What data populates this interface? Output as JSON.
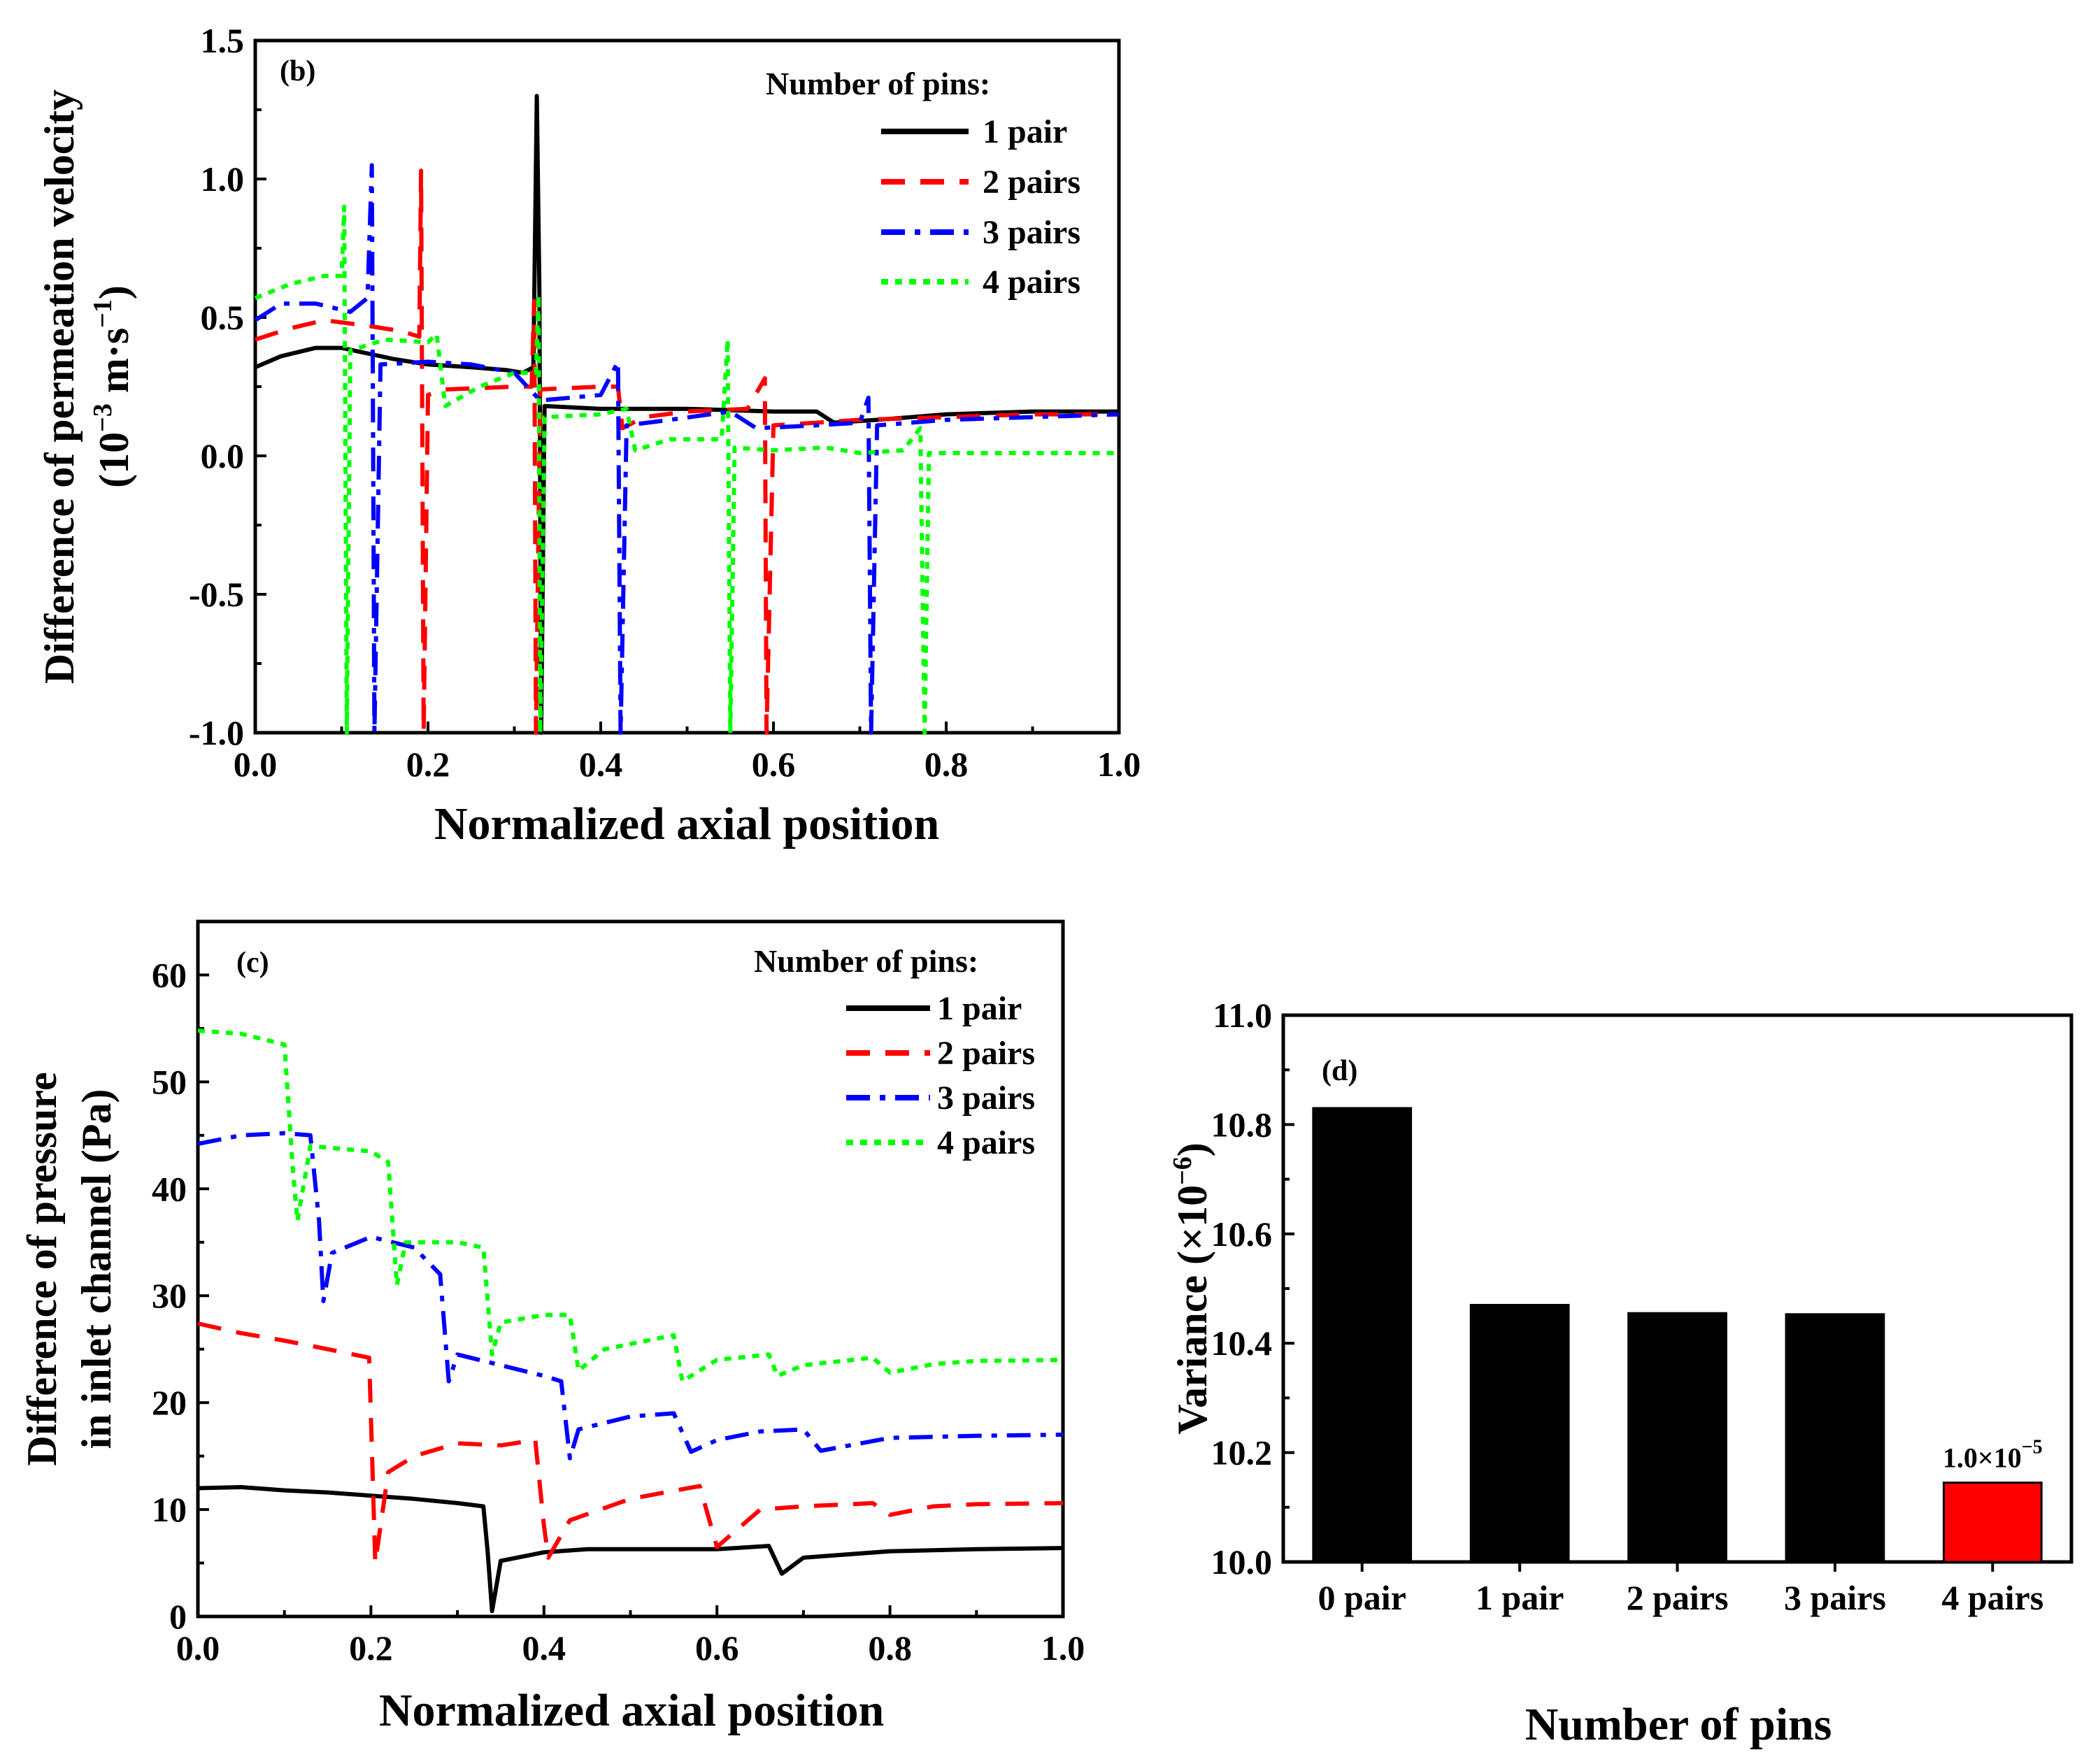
{
  "chart_data": [
    {
      "id": "b",
      "type": "line",
      "panel_label": "(b)",
      "xlabel": "Normalized axial position",
      "ylabel_line1": "Difference of permeation velocity",
      "ylabel_line2_prefix": "(10",
      "ylabel_line2_exp1": "−3",
      "ylabel_line2_mid": " m·s",
      "ylabel_line2_exp2": "−1",
      "ylabel_line2_suffix": ")",
      "xlim": [
        0,
        1
      ],
      "ylim": [
        -1,
        1.5
      ],
      "xticks": [
        "0.0",
        "0.2",
        "0.4",
        "0.6",
        "0.8",
        "1.0"
      ],
      "yticks": [
        "-1.0",
        "-0.5",
        "0.0",
        "0.5",
        "1.0",
        "1.5"
      ],
      "legend_title": "Number of pins:",
      "legend_position": "top-right",
      "series": [
        {
          "name": "1 pair",
          "color": "#000000",
          "style": "solid",
          "points": [
            [
              0.0,
              0.32
            ],
            [
              0.03,
              0.36
            ],
            [
              0.07,
              0.39
            ],
            [
              0.1,
              0.39
            ],
            [
              0.13,
              0.37
            ],
            [
              0.16,
              0.35
            ],
            [
              0.2,
              0.33
            ],
            [
              0.25,
              0.32
            ],
            [
              0.29,
              0.31
            ],
            [
              0.31,
              0.3
            ],
            [
              0.322,
              0.32
            ],
            [
              0.326,
              1.3
            ],
            [
              0.329,
              0.6
            ],
            [
              0.331,
              -1.0
            ],
            [
              0.335,
              0.18
            ],
            [
              0.4,
              0.17
            ],
            [
              0.5,
              0.17
            ],
            [
              0.6,
              0.16
            ],
            [
              0.65,
              0.16
            ],
            [
              0.67,
              0.12
            ],
            [
              0.72,
              0.13
            ],
            [
              0.8,
              0.15
            ],
            [
              0.9,
              0.16
            ],
            [
              1.0,
              0.16
            ]
          ]
        },
        {
          "name": "2 pairs",
          "color": "#ff0000",
          "style": "dash",
          "points": [
            [
              0.0,
              0.42
            ],
            [
              0.04,
              0.46
            ],
            [
              0.08,
              0.49
            ],
            [
              0.13,
              0.47
            ],
            [
              0.17,
              0.45
            ],
            [
              0.19,
              0.43
            ],
            [
              0.192,
              1.03
            ],
            [
              0.195,
              -1.0
            ],
            [
              0.2,
              0.22
            ],
            [
              0.22,
              0.24
            ],
            [
              0.3,
              0.25
            ],
            [
              0.32,
              0.25
            ],
            [
              0.323,
              0.56
            ],
            [
              0.325,
              -1.0
            ],
            [
              0.33,
              0.24
            ],
            [
              0.4,
              0.25
            ],
            [
              0.42,
              0.25
            ],
            [
              0.425,
              0.1
            ],
            [
              0.45,
              0.14
            ],
            [
              0.5,
              0.16
            ],
            [
              0.57,
              0.17
            ],
            [
              0.59,
              0.28
            ],
            [
              0.592,
              -1.0
            ],
            [
              0.6,
              0.11
            ],
            [
              0.65,
              0.12
            ],
            [
              0.7,
              0.13
            ],
            [
              0.8,
              0.14
            ],
            [
              0.9,
              0.15
            ],
            [
              1.0,
              0.15
            ]
          ]
        },
        {
          "name": "3 pairs",
          "color": "#0000ff",
          "style": "dashdot",
          "points": [
            [
              0.0,
              0.49
            ],
            [
              0.03,
              0.55
            ],
            [
              0.07,
              0.55
            ],
            [
              0.11,
              0.52
            ],
            [
              0.13,
              0.57
            ],
            [
              0.135,
              1.05
            ],
            [
              0.138,
              -1.0
            ],
            [
              0.145,
              0.33
            ],
            [
              0.2,
              0.34
            ],
            [
              0.25,
              0.33
            ],
            [
              0.3,
              0.3
            ],
            [
              0.33,
              0.2
            ],
            [
              0.4,
              0.22
            ],
            [
              0.42,
              0.34
            ],
            [
              0.423,
              -1.0
            ],
            [
              0.43,
              0.11
            ],
            [
              0.48,
              0.13
            ],
            [
              0.55,
              0.16
            ],
            [
              0.58,
              0.1
            ],
            [
              0.65,
              0.11
            ],
            [
              0.7,
              0.12
            ],
            [
              0.71,
              0.21
            ],
            [
              0.713,
              -1.0
            ],
            [
              0.72,
              0.11
            ],
            [
              0.8,
              0.13
            ],
            [
              0.9,
              0.14
            ],
            [
              1.0,
              0.15
            ]
          ]
        },
        {
          "name": "4 pairs",
          "color": "#00ff00",
          "style": "dot",
          "points": [
            [
              0.0,
              0.57
            ],
            [
              0.04,
              0.62
            ],
            [
              0.08,
              0.65
            ],
            [
              0.1,
              0.65
            ],
            [
              0.103,
              0.9
            ],
            [
              0.106,
              -1.0
            ],
            [
              0.11,
              0.38
            ],
            [
              0.15,
              0.42
            ],
            [
              0.2,
              0.41
            ],
            [
              0.21,
              0.44
            ],
            [
              0.22,
              0.18
            ],
            [
              0.26,
              0.25
            ],
            [
              0.3,
              0.3
            ],
            [
              0.325,
              0.3
            ],
            [
              0.328,
              0.58
            ],
            [
              0.33,
              -1.0
            ],
            [
              0.335,
              0.14
            ],
            [
              0.4,
              0.15
            ],
            [
              0.43,
              0.17
            ],
            [
              0.44,
              0.02
            ],
            [
              0.48,
              0.06
            ],
            [
              0.54,
              0.06
            ],
            [
              0.547,
              0.42
            ],
            [
              0.55,
              -1.0
            ],
            [
              0.555,
              0.03
            ],
            [
              0.6,
              0.02
            ],
            [
              0.66,
              0.03
            ],
            [
              0.7,
              0.01
            ],
            [
              0.75,
              0.02
            ],
            [
              0.77,
              0.1
            ],
            [
              0.775,
              -1.0
            ],
            [
              0.78,
              0.01
            ],
            [
              0.9,
              0.01
            ],
            [
              1.0,
              0.01
            ]
          ]
        }
      ]
    },
    {
      "id": "c",
      "type": "line",
      "panel_label": "(c)",
      "xlabel": "Normalized axial position",
      "ylabel_line1": "Difference of pressure",
      "ylabel_line2": "in inlet channel (Pa)",
      "xlim": [
        0,
        1
      ],
      "ylim": [
        0,
        65
      ],
      "xticks": [
        "0.0",
        "0.2",
        "0.4",
        "0.6",
        "0.8",
        "1.0"
      ],
      "yticks": [
        "0",
        "10",
        "20",
        "30",
        "40",
        "50",
        "60"
      ],
      "legend_title": "Number of pins:",
      "legend_position": "top-right",
      "series": [
        {
          "name": "1 pair",
          "color": "#000000",
          "style": "solid",
          "points": [
            [
              0.0,
              12.0
            ],
            [
              0.05,
              12.1
            ],
            [
              0.1,
              11.8
            ],
            [
              0.15,
              11.6
            ],
            [
              0.2,
              11.3
            ],
            [
              0.25,
              11.0
            ],
            [
              0.3,
              10.6
            ],
            [
              0.33,
              10.3
            ],
            [
              0.335,
              6.0
            ],
            [
              0.34,
              0.5
            ],
            [
              0.35,
              5.2
            ],
            [
              0.4,
              6.0
            ],
            [
              0.45,
              6.3
            ],
            [
              0.5,
              6.3
            ],
            [
              0.6,
              6.3
            ],
            [
              0.66,
              6.6
            ],
            [
              0.675,
              4.0
            ],
            [
              0.7,
              5.5
            ],
            [
              0.8,
              6.1
            ],
            [
              0.9,
              6.3
            ],
            [
              1.0,
              6.4
            ]
          ]
        },
        {
          "name": "2 pairs",
          "color": "#ff0000",
          "style": "dash",
          "points": [
            [
              0.0,
              27.4
            ],
            [
              0.05,
              26.5
            ],
            [
              0.1,
              25.8
            ],
            [
              0.15,
              25.0
            ],
            [
              0.198,
              24.2
            ],
            [
              0.205,
              5.0
            ],
            [
              0.22,
              13.5
            ],
            [
              0.25,
              15.0
            ],
            [
              0.3,
              16.2
            ],
            [
              0.35,
              16.0
            ],
            [
              0.39,
              16.5
            ],
            [
              0.4,
              8.5
            ],
            [
              0.405,
              5.5
            ],
            [
              0.43,
              9.0
            ],
            [
              0.5,
              11.0
            ],
            [
              0.58,
              12.2
            ],
            [
              0.6,
              6.5
            ],
            [
              0.65,
              10.0
            ],
            [
              0.7,
              10.3
            ],
            [
              0.78,
              10.6
            ],
            [
              0.8,
              9.5
            ],
            [
              0.85,
              10.3
            ],
            [
              0.9,
              10.5
            ],
            [
              1.0,
              10.6
            ]
          ]
        },
        {
          "name": "3 pairs",
          "color": "#0000ff",
          "style": "dashdot",
          "points": [
            [
              0.0,
              44.2
            ],
            [
              0.05,
              45.0
            ],
            [
              0.1,
              45.2
            ],
            [
              0.13,
              45.0
            ],
            [
              0.14,
              37.0
            ],
            [
              0.145,
              29.5
            ],
            [
              0.155,
              34.0
            ],
            [
              0.2,
              35.5
            ],
            [
              0.25,
              34.5
            ],
            [
              0.28,
              32.0
            ],
            [
              0.29,
              22.0
            ],
            [
              0.3,
              24.5
            ],
            [
              0.35,
              23.5
            ],
            [
              0.4,
              22.5
            ],
            [
              0.42,
              22.0
            ],
            [
              0.43,
              14.8
            ],
            [
              0.44,
              17.5
            ],
            [
              0.5,
              18.7
            ],
            [
              0.55,
              19.0
            ],
            [
              0.57,
              15.4
            ],
            [
              0.6,
              16.5
            ],
            [
              0.65,
              17.3
            ],
            [
              0.7,
              17.5
            ],
            [
              0.72,
              15.5
            ],
            [
              0.8,
              16.7
            ],
            [
              0.9,
              16.9
            ],
            [
              1.0,
              17.0
            ]
          ]
        },
        {
          "name": "4 pairs",
          "color": "#00ff00",
          "style": "dot",
          "points": [
            [
              0.0,
              54.8
            ],
            [
              0.05,
              54.5
            ],
            [
              0.1,
              53.5
            ],
            [
              0.11,
              41.5
            ],
            [
              0.115,
              37.0
            ],
            [
              0.13,
              44.0
            ],
            [
              0.2,
              43.5
            ],
            [
              0.22,
              42.5
            ],
            [
              0.23,
              31.0
            ],
            [
              0.24,
              35.0
            ],
            [
              0.3,
              35.0
            ],
            [
              0.33,
              34.5
            ],
            [
              0.34,
              24.5
            ],
            [
              0.35,
              27.5
            ],
            [
              0.4,
              28.2
            ],
            [
              0.43,
              28.2
            ],
            [
              0.44,
              23.0
            ],
            [
              0.47,
              25.0
            ],
            [
              0.55,
              26.3
            ],
            [
              0.56,
              22.0
            ],
            [
              0.6,
              24.0
            ],
            [
              0.66,
              24.5
            ],
            [
              0.67,
              22.5
            ],
            [
              0.7,
              23.5
            ],
            [
              0.78,
              24.2
            ],
            [
              0.8,
              22.8
            ],
            [
              0.85,
              23.6
            ],
            [
              0.9,
              23.9
            ],
            [
              1.0,
              24.0
            ]
          ]
        }
      ]
    },
    {
      "id": "d",
      "type": "bar",
      "panel_label": "(d)",
      "xlabel": "Number of pins",
      "ylabel_prefix": "Variance (×10",
      "ylabel_exp": "−6",
      "ylabel_suffix": ")",
      "ylim": [
        10.0,
        11.0
      ],
      "yticks": [
        "10.0",
        "10.2",
        "10.4",
        "10.6",
        "10.8",
        "11.0"
      ],
      "categories": [
        "0 pair",
        "1 pair",
        "2 pairs",
        "3 pairs",
        "4 pairs"
      ],
      "values": [
        10.83,
        10.47,
        10.455,
        10.453,
        10.145
      ],
      "colors": [
        "#000000",
        "#000000",
        "#000000",
        "#000000",
        "#ff0000"
      ],
      "annotation_base": "1.0×10",
      "annotation_exp": "−5"
    }
  ]
}
